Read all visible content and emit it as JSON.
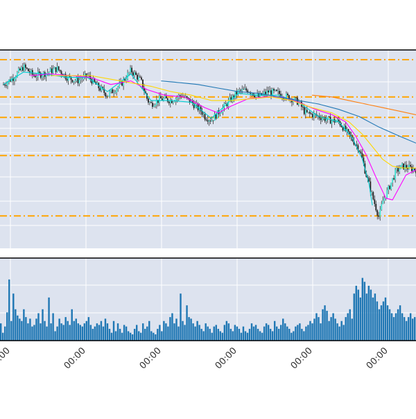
{
  "chart_data": [
    {
      "type": "candlestick",
      "title": "",
      "xlabel": "",
      "ylabel": "",
      "grid": true,
      "x_tick_labels": [
        "00:00",
        "00:00",
        "00:00",
        "00:00",
        "00:00",
        "00:00"
      ],
      "x_tick_positions": [
        5,
        27.5,
        50,
        72.5,
        95,
        117.5
      ],
      "x_range": [
        0,
        123
      ],
      "y_range": [
        0,
        100
      ],
      "price_path": [
        [
          0,
          86
        ],
        [
          3,
          90
        ],
        [
          6,
          96
        ],
        [
          9,
          91
        ],
        [
          12,
          92
        ],
        [
          16,
          95
        ],
        [
          19,
          90
        ],
        [
          22,
          88
        ],
        [
          25,
          91
        ],
        [
          28,
          85
        ],
        [
          31,
          80
        ],
        [
          35,
          86
        ],
        [
          38,
          94
        ],
        [
          41,
          88
        ],
        [
          43,
          77
        ],
        [
          44,
          75
        ],
        [
          47,
          78
        ],
        [
          50,
          77
        ],
        [
          53,
          80
        ],
        [
          56,
          76
        ],
        [
          59,
          71
        ],
        [
          60,
          68
        ],
        [
          62,
          66
        ],
        [
          64,
          70
        ],
        [
          67,
          76
        ],
        [
          70,
          82
        ],
        [
          73,
          83
        ],
        [
          76,
          79
        ],
        [
          79,
          82
        ],
        [
          82,
          81
        ],
        [
          86,
          78
        ],
        [
          88,
          76
        ],
        [
          90,
          70
        ],
        [
          92,
          69
        ],
        [
          94,
          68
        ],
        [
          97,
          66
        ],
        [
          100,
          65
        ],
        [
          102,
          60
        ],
        [
          104,
          55
        ],
        [
          106,
          50
        ],
        [
          107,
          44
        ],
        [
          108,
          36
        ],
        [
          109,
          30
        ],
        [
          110,
          23
        ],
        [
          111,
          17
        ],
        [
          112,
          11
        ],
        [
          113,
          20
        ],
        [
          115,
          28
        ],
        [
          117,
          37
        ],
        [
          119,
          40
        ],
        [
          121,
          39
        ],
        [
          123,
          38
        ]
      ],
      "series": [
        {
          "name": "",
          "color": "#00ced1",
          "values": [
            [
              0,
              86
            ],
            [
              6,
              93
            ],
            [
              12,
              92
            ],
            [
              19,
              90
            ],
            [
              25,
              90
            ],
            [
              31,
              82
            ],
            [
              38,
              92
            ],
            [
              44,
              77
            ],
            [
              50,
              77
            ],
            [
              56,
              76
            ],
            [
              62,
              67
            ],
            [
              70,
              81
            ],
            [
              76,
              80
            ],
            [
              82,
              80
            ],
            [
              88,
              76
            ],
            [
              94,
              68
            ],
            [
              100,
              65
            ],
            [
              104,
              56
            ],
            [
              107,
              44
            ],
            [
              109,
              30
            ],
            [
              110,
              18
            ]
          ]
        },
        {
          "name": "",
          "color": "#ff00ff",
          "values": [
            [
              8,
              91
            ],
            [
              14,
              92
            ],
            [
              20,
              91
            ],
            [
              26,
              90
            ],
            [
              32,
              86
            ],
            [
              38,
              88
            ],
            [
              43,
              83
            ],
            [
              48,
              80
            ],
            [
              54,
              79
            ],
            [
              60,
              73
            ],
            [
              64,
              70
            ],
            [
              68,
              74
            ],
            [
              73,
              78
            ],
            [
              78,
              79
            ],
            [
              83,
              79
            ],
            [
              88,
              76
            ],
            [
              93,
              72
            ],
            [
              98,
              69
            ],
            [
              102,
              65
            ],
            [
              105,
              57
            ],
            [
              108,
              47
            ],
            [
              111,
              34
            ],
            [
              114,
              22
            ],
            [
              116,
              21
            ],
            [
              118,
              28
            ],
            [
              120,
              35
            ],
            [
              123,
              38
            ]
          ]
        },
        {
          "name": "",
          "color": "#ffd700",
          "values": [
            [
              14,
              91
            ],
            [
              20,
              91
            ],
            [
              26,
              91
            ],
            [
              32,
              89
            ],
            [
              38,
              87
            ],
            [
              44,
              85
            ],
            [
              50,
              82
            ],
            [
              56,
              80
            ],
            [
              62,
              77
            ],
            [
              68,
              77
            ],
            [
              74,
              78
            ],
            [
              80,
              79
            ],
            [
              86,
              77
            ],
            [
              92,
              73
            ],
            [
              98,
              70
            ],
            [
              103,
              65
            ],
            [
              107,
              58
            ],
            [
              110,
              51
            ],
            [
              113,
              44
            ],
            [
              116,
              40
            ],
            [
              119,
              39
            ],
            [
              123,
              39
            ]
          ]
        },
        {
          "name": "",
          "color": "#1f77b4",
          "values": [
            [
              47,
              88
            ],
            [
              53,
              87
            ],
            [
              58,
              86
            ],
            [
              64,
              84
            ],
            [
              70,
              82
            ],
            [
              76,
              81
            ],
            [
              82,
              79
            ],
            [
              88,
              77
            ],
            [
              94,
              75
            ],
            [
              100,
              72
            ],
            [
              106,
              68
            ],
            [
              112,
              62
            ],
            [
              118,
              57
            ],
            [
              123,
              53
            ]
          ]
        },
        {
          "name": "",
          "color": "#ff7f0e",
          "values": [
            [
              92,
              80
            ],
            [
              98,
              79
            ],
            [
              103,
              77
            ],
            [
              108,
              75
            ],
            [
              113,
              73
            ],
            [
              118,
              71
            ],
            [
              123,
              69
            ]
          ]
        }
      ],
      "horizontal_levels": [
        100,
        79,
        67.5,
        57,
        46,
        12
      ],
      "level_color": "#ffa500",
      "background": "#dde3ef"
    },
    {
      "type": "bar",
      "title": "",
      "xlabel": "",
      "ylabel": "",
      "grid": true,
      "y_range": [
        0,
        100
      ],
      "bar_color": "#1f77b4",
      "values": [
        22,
        10,
        18,
        36,
        78,
        25,
        60,
        40,
        32,
        28,
        25,
        40,
        30,
        22,
        28,
        18,
        20,
        28,
        35,
        22,
        40,
        25,
        18,
        55,
        22,
        35,
        12,
        18,
        28,
        22,
        20,
        30,
        25,
        20,
        40,
        25,
        28,
        22,
        20,
        18,
        22,
        25,
        30,
        20,
        15,
        18,
        22,
        20,
        25,
        18,
        28,
        22,
        15,
        10,
        25,
        12,
        22,
        15,
        10,
        20,
        18,
        12,
        10,
        8,
        15,
        20,
        12,
        10,
        22,
        15,
        18,
        25,
        12,
        10,
        8,
        15,
        20,
        12,
        25,
        22,
        18,
        30,
        35,
        22,
        28,
        18,
        60,
        25,
        20,
        45,
        30,
        28,
        22,
        18,
        25,
        20,
        15,
        12,
        22,
        18,
        15,
        10,
        18,
        20,
        15,
        12,
        10,
        20,
        25,
        22,
        15,
        12,
        20,
        18,
        15,
        10,
        18,
        12,
        10,
        15,
        22,
        18,
        20,
        15,
        12,
        10,
        18,
        22,
        20,
        15,
        12,
        25,
        18,
        15,
        20,
        28,
        22,
        18,
        15,
        10,
        12,
        18,
        20,
        22,
        15,
        12,
        18,
        20,
        25,
        22,
        28,
        35,
        30,
        22,
        40,
        45,
        38,
        25,
        30,
        35,
        28,
        22,
        18,
        25,
        20,
        30,
        35,
        40,
        28,
        60,
        70,
        65,
        55,
        80,
        75,
        60,
        70,
        65,
        55,
        60,
        50,
        40,
        45,
        50,
        55,
        45,
        40,
        35,
        30,
        35,
        40,
        45,
        35,
        30,
        25,
        30,
        35,
        28,
        30
      ]
    }
  ]
}
